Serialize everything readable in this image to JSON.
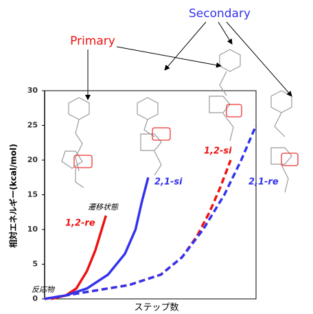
{
  "chart_data": {
    "type": "line",
    "x_label": "ステップ数",
    "y_label": "相対エネルギー(kcal/mol)",
    "xlim": [
      0,
      100
    ],
    "ylim": [
      0,
      30
    ],
    "yticks": [
      0,
      5,
      10,
      15,
      20,
      25,
      30
    ],
    "series": [
      {
        "name": "1,2-re",
        "color": "#ee1111",
        "dashed": false,
        "x": [
          3,
          10,
          15,
          20,
          24,
          27,
          29
        ],
        "values": [
          0,
          0.5,
          1.5,
          4,
          7,
          10,
          12
        ]
      },
      {
        "name": "2,1-si",
        "color": "#3333ee",
        "dashed": false,
        "x": [
          0,
          10,
          20,
          30,
          38,
          43,
          46,
          49
        ],
        "values": [
          0,
          0.5,
          1.5,
          3.5,
          6.5,
          10,
          14,
          17.5
        ]
      },
      {
        "name": "1,2-si",
        "color": "#ee1111",
        "dashed": true,
        "x": [
          0,
          20,
          40,
          55,
          65,
          72,
          78,
          83,
          88
        ],
        "values": [
          0,
          1,
          2,
          3.5,
          6,
          9,
          12.5,
          16,
          20
        ]
      },
      {
        "name": "2,1-re",
        "color": "#3333ee",
        "dashed": true,
        "x": [
          0,
          20,
          40,
          55,
          65,
          75,
          85,
          93,
          100
        ],
        "values": [
          0,
          1,
          2,
          3.5,
          6,
          10,
          15,
          20,
          25
        ]
      }
    ],
    "annotations": {
      "primary": "Primary",
      "secondary": "Secondary",
      "transition_state": "遷移状態",
      "reactant": "反応物"
    }
  }
}
